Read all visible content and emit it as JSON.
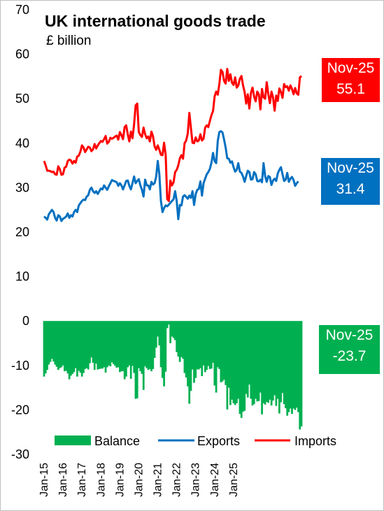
{
  "chart_data": {
    "type": "line+bar",
    "title": "UK international goods trade",
    "subtitle": "£ billion",
    "ylim": [
      -30,
      70
    ],
    "yticks": [
      70,
      60,
      50,
      40,
      30,
      20,
      10,
      0,
      -10,
      -20,
      -30
    ],
    "x_tick_labels": [
      "Jan-15",
      "Jan-16",
      "Jan-17",
      "Jan-18",
      "Jan-19",
      "Jan-20",
      "Jan-21",
      "Jan-22",
      "Jan-23",
      "Jan-24",
      "Jan-25"
    ],
    "x_start": "Jan-15",
    "x_end": "Nov-25",
    "legend": {
      "position": "bottom",
      "entries": [
        "Balance",
        "Exports",
        "Imports"
      ]
    },
    "colors": {
      "imports": "#ff0000",
      "exports": "#0070c0",
      "balance": "#00b050"
    },
    "series": [
      {
        "name": "Imports",
        "type": "line",
        "values": [
          36,
          35,
          33.8,
          33.8,
          33.7,
          33.5,
          33.6,
          33.0,
          32.9,
          34.8,
          34.1,
          32.9,
          33.0,
          34.5,
          34.7,
          36.0,
          36.3,
          36.1,
          35.4,
          36.0,
          35.6,
          37.0,
          37.2,
          38.1,
          39.5,
          39.0,
          38.0,
          38.6,
          39.2,
          39.0,
          38.2,
          38.6,
          39.8,
          38.8,
          39.5,
          40.0,
          40.5,
          40.3,
          40.9,
          41.6,
          39.9,
          40.3,
          41.2,
          41.0,
          41.2,
          41.5,
          41.7,
          40.8,
          42.5,
          41.8,
          40.9,
          43.6,
          44.0,
          42.0,
          40.4,
          42.6,
          41.1,
          44.2,
          48.5,
          48.9,
          42.5,
          41.8,
          41.4,
          43.5,
          42.0,
          41.1,
          41.5,
          40.4,
          42.6,
          41.5,
          39.3,
          38.5,
          39.5,
          38.5,
          37.4,
          37.3,
          40.1,
          37.4,
          27.4,
          27.0,
          31.6,
          30.5,
          31.2,
          33.5,
          34.0,
          35.0,
          36.6,
          37.3,
          36.5,
          40.0,
          40.6,
          42.2,
          46.8,
          43.4,
          40.1,
          40.0,
          41.3,
          40.4,
          40.6,
          42.0,
          40.6,
          41.0,
          43.5,
          44.0,
          43.6,
          45.0,
          46.3,
          47.2,
          50.5,
          51.6,
          50.9,
          53.3,
          56.5,
          56.0,
          54.0,
          53.4,
          56.7,
          54.0,
          55.5,
          53.6,
          53.1,
          54.8,
          52.5,
          53.0,
          54.5,
          55.1,
          53.0,
          51.5,
          48.9,
          51.0,
          47.8,
          51.3,
          52.5,
          50.5,
          49.4,
          51.6,
          51.0,
          47.6,
          52.2,
          50.3,
          50.0,
          53.7,
          51.0,
          49.0,
          51.6,
          50.3,
          47.3,
          50.7,
          49.5,
          52.3,
          51.5,
          50.2,
          53.3,
          52.6,
          52.8,
          51.8,
          53.0,
          52.2,
          51.0,
          52.4,
          51.2,
          50.9,
          54.8,
          55.1
        ]
      },
      {
        "name": "Exports",
        "type": "line",
        "values": [
          23.5,
          23.2,
          22.8,
          24.0,
          24.5,
          25.0,
          24.5,
          23.2,
          22.6,
          23.8,
          23.5,
          22.5,
          23.0,
          23.2,
          23.5,
          24.2,
          23.2,
          23.8,
          23.5,
          24.5,
          25.0,
          24.5,
          26.0,
          26.5,
          27.0,
          27.3,
          27.2,
          28.0,
          28.3,
          29.5,
          30.0,
          29.2,
          28.8,
          29.2,
          28.6,
          29.2,
          29.8,
          29.6,
          30.5,
          30.0,
          29.5,
          30.3,
          31.0,
          31.7,
          31.5,
          31.4,
          31.2,
          30.4,
          31.0,
          30.5,
          29.6,
          30.5,
          31.5,
          31.6,
          30.4,
          29.6,
          31.0,
          32.5,
          31.0,
          31.5,
          31.9,
          30.5,
          29.5,
          28.0,
          31.8,
          30.5,
          30.5,
          29.6,
          31.3,
          30.7,
          31.0,
          32.5,
          36.0,
          33.0,
          27.0,
          24.5,
          25.4,
          26.0,
          25.8,
          26.2,
          26.6,
          27.0,
          27.4,
          29.2,
          27.0,
          22.9,
          26.1,
          26.0,
          28.0,
          28.3,
          27.9,
          27.5,
          28.2,
          27.7,
          29.2,
          26.1,
          28.5,
          29.5,
          29.7,
          31.4,
          28.2,
          31.0,
          32.0,
          33.0,
          33.5,
          34.2,
          35.6,
          37.8,
          36.0,
          35.5,
          40.5,
          42.5,
          42.7,
          42.4,
          40.8,
          39.0,
          36.6,
          36.5,
          35.6,
          35.9,
          34.6,
          33.6,
          34.0,
          35.5,
          33.6,
          33.3,
          32.5,
          31.3,
          32.6,
          33.8,
          33.5,
          31.8,
          31.9,
          33.5,
          33.0,
          31.5,
          31.4,
          31.8,
          31.2,
          35.5,
          32.6,
          31.3,
          32.6,
          32.4,
          30.6,
          31.6,
          32.0,
          31.5,
          33.2,
          34.0,
          34.6,
          33.0,
          31.5,
          31.8,
          33.3,
          31.3,
          32.0,
          32.4,
          31.7,
          30.4,
          31.0,
          31.4
        ]
      },
      {
        "name": "Balance",
        "type": "bar",
        "values": [
          -12.5,
          -11.8,
          -11.0,
          -9.8,
          -9.2,
          -8.5,
          -9.1,
          -9.8,
          -10.3,
          -11.0,
          -10.6,
          -10.4,
          -10.0,
          -11.3,
          -11.2,
          -11.8,
          -13.1,
          -12.3,
          -11.9,
          -11.5,
          -10.6,
          -12.5,
          -11.2,
          -11.6,
          -12.5,
          -11.7,
          -10.8,
          -10.6,
          -10.9,
          -9.5,
          -8.2,
          -9.4,
          -11.0,
          -9.6,
          -10.9,
          -10.8,
          -10.7,
          -10.7,
          -10.4,
          -11.6,
          -10.4,
          -10.0,
          -10.2,
          -9.3,
          -9.7,
          -10.1,
          -10.5,
          -10.4,
          -11.5,
          -11.3,
          -11.3,
          -13.1,
          -12.5,
          -10.4,
          -10.0,
          -13.0,
          -10.1,
          -11.7,
          -17.5,
          -17.4,
          -10.6,
          -11.3,
          -11.9,
          -15.5,
          -10.2,
          -10.6,
          -11.0,
          -10.8,
          -11.3,
          -10.8,
          -8.3,
          -6.0,
          -3.5,
          -5.5,
          -10.4,
          -12.8,
          -14.7,
          -11.4,
          -1.6,
          -0.8,
          -5.0,
          -3.5,
          -3.8,
          -4.3,
          -7.0,
          -8.0,
          -9.2,
          -8.1,
          -8.5,
          -11.7,
          -12.7,
          -14.7,
          -18.6,
          -15.7,
          -10.9,
          -13.9,
          -12.8,
          -10.9,
          -10.9,
          -10.6,
          -12.4,
          -10.0,
          -11.5,
          -11.0,
          -10.1,
          -10.8,
          -10.7,
          -9.4,
          -14.5,
          -16.1,
          -10.4,
          -10.8,
          -13.8,
          -13.6,
          -13.2,
          -14.4,
          -19.9,
          -15.0,
          -18.9,
          -17.7,
          -18.5,
          -18.9,
          -18.5,
          -17.5,
          -20.9,
          -21.8,
          -20.4,
          -20.2,
          -16.4,
          -17.2,
          -14.3,
          -17.5,
          -19.0,
          -18.7,
          -17.5,
          -18.1,
          -18.0,
          -16.1,
          -21.0,
          -18.5,
          -18.8,
          -18.2,
          -18.4,
          -17.7,
          -19.0,
          -17.9,
          -16.7,
          -19.1,
          -17.5,
          -20.8,
          -18.3,
          -16.2,
          -18.7,
          -19.6,
          -21.3,
          -20.5,
          -19.7,
          -20.9,
          -19.7,
          -20.0,
          -19.5,
          -20.5,
          -24.4,
          -23.7
        ]
      }
    ],
    "callouts": [
      {
        "series": "Imports",
        "label": "Nov-25",
        "value": "55.1",
        "color": "#ff0000"
      },
      {
        "series": "Exports",
        "label": "Nov-25",
        "value": "31.4",
        "color": "#0070c0"
      },
      {
        "series": "Balance",
        "label": "Nov-25",
        "value": "-23.7",
        "color": "#00b050"
      }
    ]
  }
}
